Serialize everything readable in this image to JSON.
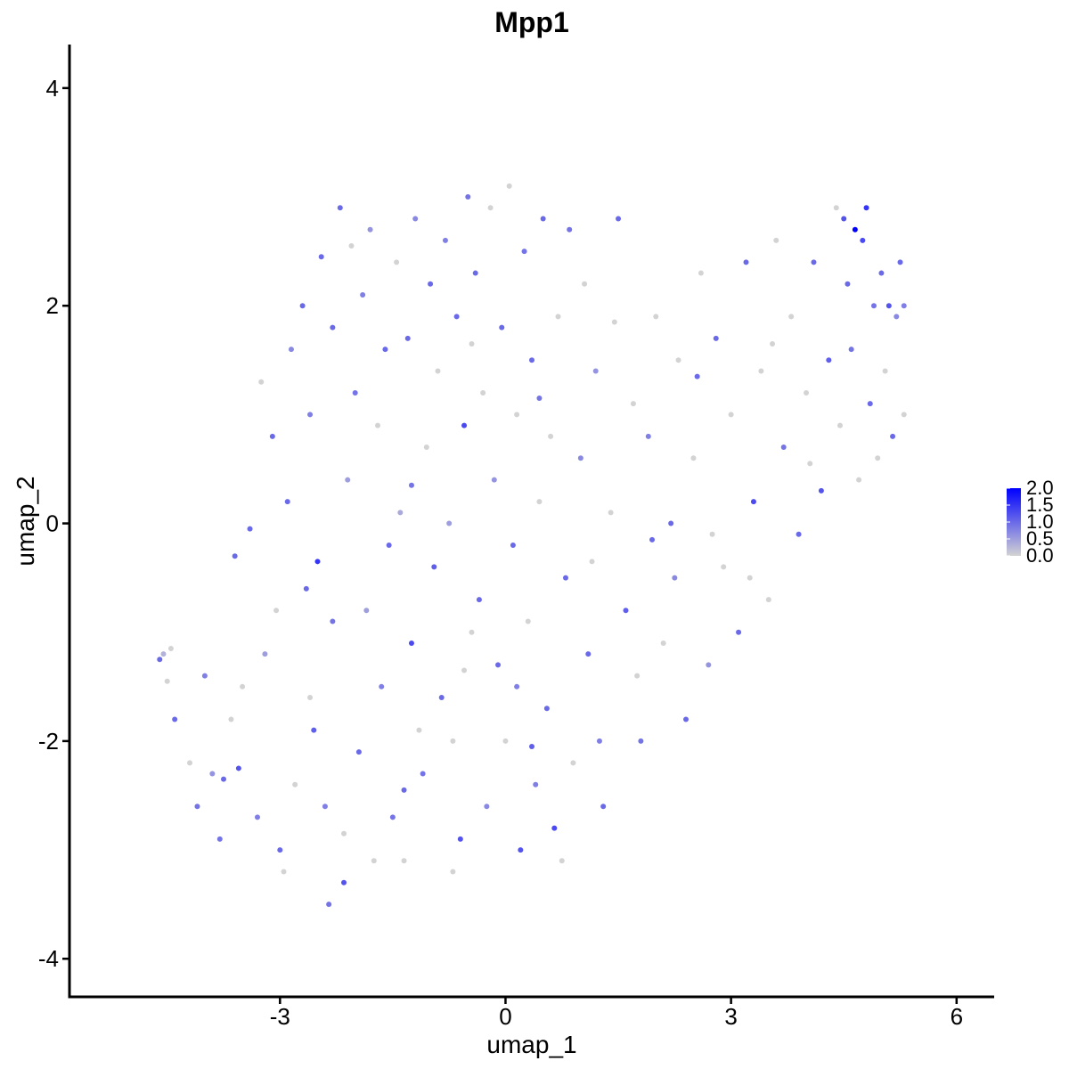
{
  "chart_data": {
    "type": "scatter",
    "title": "Mpp1",
    "xlabel": "umap_1",
    "ylabel": "umap_2",
    "xlim": [
      -5.8,
      6.5
    ],
    "ylim": [
      -4.35,
      4.4
    ],
    "xticks": [
      -3,
      0,
      3,
      6
    ],
    "yticks": [
      -4,
      -2,
      0,
      2,
      4
    ],
    "xtick_labels": [
      "-3",
      "0",
      "3",
      "6"
    ],
    "ytick_labels": [
      "-4",
      "-2",
      "0",
      "2",
      "4"
    ],
    "grid": false,
    "legend": {
      "placement": "right",
      "type": "colorbar",
      "labels": [
        "2.0",
        "1.5",
        "1.0",
        "0.5",
        "0.0"
      ],
      "values": [
        2.0,
        1.5,
        1.0,
        0.5,
        0.0
      ],
      "low_color": "#d3d3d3",
      "high_color": "#0000ff"
    },
    "colors": {
      "low": "#d3d3d3",
      "high": "#0000ff"
    },
    "color_range": [
      0,
      2.0
    ],
    "points": [
      {
        "x": -4.6,
        "y": -1.25,
        "v": 1.0
      },
      {
        "x": -4.55,
        "y": -1.2,
        "v": 0.3
      },
      {
        "x": -4.5,
        "y": -1.45,
        "v": 0.0
      },
      {
        "x": -4.45,
        "y": -1.15,
        "v": 0.0
      },
      {
        "x": -4.4,
        "y": -1.8,
        "v": 1.0
      },
      {
        "x": -4.2,
        "y": -2.2,
        "v": 0.0
      },
      {
        "x": -4.1,
        "y": -2.6,
        "v": 0.9
      },
      {
        "x": -4.0,
        "y": -1.4,
        "v": 0.8
      },
      {
        "x": -3.9,
        "y": -2.3,
        "v": 0.6
      },
      {
        "x": -3.8,
        "y": -2.9,
        "v": 0.9
      },
      {
        "x": -3.6,
        "y": -0.3,
        "v": 1.0
      },
      {
        "x": -3.55,
        "y": -2.25,
        "v": 1.2
      },
      {
        "x": -3.5,
        "y": -1.5,
        "v": 0.0
      },
      {
        "x": -3.4,
        "y": -0.05,
        "v": 1.0
      },
      {
        "x": -3.3,
        "y": -2.7,
        "v": 0.8
      },
      {
        "x": -3.2,
        "y": -1.2,
        "v": 0.5
      },
      {
        "x": -3.1,
        "y": 0.8,
        "v": 1.0
      },
      {
        "x": -3.0,
        "y": -3.0,
        "v": 1.0
      },
      {
        "x": -2.9,
        "y": 0.2,
        "v": 1.0
      },
      {
        "x": -2.85,
        "y": 1.6,
        "v": 0.7
      },
      {
        "x": -2.8,
        "y": -2.4,
        "v": 0.0
      },
      {
        "x": -2.7,
        "y": 2.0,
        "v": 1.0
      },
      {
        "x": -2.65,
        "y": -0.6,
        "v": 1.0
      },
      {
        "x": -2.6,
        "y": 1.0,
        "v": 0.8
      },
      {
        "x": -2.55,
        "y": -1.9,
        "v": 1.1
      },
      {
        "x": -2.5,
        "y": -0.35,
        "v": 1.5
      },
      {
        "x": -2.45,
        "y": 2.45,
        "v": 1.0
      },
      {
        "x": -2.4,
        "y": -2.6,
        "v": 0.8
      },
      {
        "x": -2.35,
        "y": -3.5,
        "v": 0.9
      },
      {
        "x": -2.3,
        "y": 1.8,
        "v": 1.0
      },
      {
        "x": -2.2,
        "y": 2.9,
        "v": 1.0
      },
      {
        "x": -2.15,
        "y": -3.3,
        "v": 1.2
      },
      {
        "x": -2.1,
        "y": 0.4,
        "v": 0.5
      },
      {
        "x": -2.0,
        "y": 1.2,
        "v": 0.9
      },
      {
        "x": -1.95,
        "y": -2.1,
        "v": 1.0
      },
      {
        "x": -1.9,
        "y": 2.1,
        "v": 0.8
      },
      {
        "x": -1.85,
        "y": -0.8,
        "v": 0.5
      },
      {
        "x": -1.8,
        "y": 2.7,
        "v": 0.6
      },
      {
        "x": -1.7,
        "y": 0.9,
        "v": 0.0
      },
      {
        "x": -1.65,
        "y": -1.5,
        "v": 0.8
      },
      {
        "x": -1.6,
        "y": 1.6,
        "v": 1.0
      },
      {
        "x": -1.5,
        "y": -2.7,
        "v": 0.9
      },
      {
        "x": -1.45,
        "y": 2.4,
        "v": 0.0
      },
      {
        "x": -1.4,
        "y": 0.1,
        "v": 0.4
      },
      {
        "x": -1.35,
        "y": -3.1,
        "v": 0.0
      },
      {
        "x": -1.3,
        "y": 1.7,
        "v": 1.0
      },
      {
        "x": -1.25,
        "y": -1.1,
        "v": 1.3
      },
      {
        "x": -1.2,
        "y": 2.8,
        "v": 0.7
      },
      {
        "x": -1.1,
        "y": -2.3,
        "v": 0.9
      },
      {
        "x": -1.05,
        "y": 0.7,
        "v": 0.0
      },
      {
        "x": -1.0,
        "y": 2.2,
        "v": 1.0
      },
      {
        "x": -0.95,
        "y": -0.4,
        "v": 1.1
      },
      {
        "x": -0.9,
        "y": 1.4,
        "v": 0.0
      },
      {
        "x": -0.85,
        "y": -1.6,
        "v": 1.0
      },
      {
        "x": -0.8,
        "y": 2.6,
        "v": 0.8
      },
      {
        "x": -0.75,
        "y": 0.0,
        "v": 0.5
      },
      {
        "x": -0.7,
        "y": -2.0,
        "v": 0.0
      },
      {
        "x": -0.65,
        "y": 1.9,
        "v": 1.0
      },
      {
        "x": -0.6,
        "y": -2.9,
        "v": 1.2
      },
      {
        "x": -0.55,
        "y": 0.9,
        "v": 1.3
      },
      {
        "x": -0.5,
        "y": 3.0,
        "v": 0.9
      },
      {
        "x": -0.45,
        "y": -1.0,
        "v": 0.0
      },
      {
        "x": -0.4,
        "y": 2.3,
        "v": 1.0
      },
      {
        "x": -0.35,
        "y": -0.7,
        "v": 1.0
      },
      {
        "x": -0.3,
        "y": 1.2,
        "v": 0.0
      },
      {
        "x": -0.25,
        "y": -2.6,
        "v": 0.7
      },
      {
        "x": -0.2,
        "y": 2.9,
        "v": 0.0
      },
      {
        "x": -0.15,
        "y": 0.4,
        "v": 0.6
      },
      {
        "x": -0.1,
        "y": -1.3,
        "v": 1.0
      },
      {
        "x": -0.05,
        "y": 1.8,
        "v": 1.0
      },
      {
        "x": 0.0,
        "y": -2.0,
        "v": 0.0
      },
      {
        "x": 0.05,
        "y": 3.1,
        "v": 0.0
      },
      {
        "x": 0.1,
        "y": -0.2,
        "v": 1.0
      },
      {
        "x": 0.15,
        "y": 1.0,
        "v": 0.0
      },
      {
        "x": 0.2,
        "y": -3.0,
        "v": 1.2
      },
      {
        "x": 0.25,
        "y": 2.5,
        "v": 0.9
      },
      {
        "x": 0.3,
        "y": -0.9,
        "v": 0.0
      },
      {
        "x": 0.35,
        "y": 1.5,
        "v": 1.0
      },
      {
        "x": 0.4,
        "y": -2.4,
        "v": 0.8
      },
      {
        "x": 0.45,
        "y": 0.2,
        "v": 0.0
      },
      {
        "x": 0.5,
        "y": 2.8,
        "v": 1.0
      },
      {
        "x": 0.55,
        "y": -1.7,
        "v": 1.0
      },
      {
        "x": 0.6,
        "y": 0.8,
        "v": 0.0
      },
      {
        "x": 0.65,
        "y": -2.8,
        "v": 1.3
      },
      {
        "x": 0.7,
        "y": 1.9,
        "v": 0.0
      },
      {
        "x": 0.8,
        "y": -0.5,
        "v": 1.0
      },
      {
        "x": 0.85,
        "y": 2.7,
        "v": 0.9
      },
      {
        "x": 0.9,
        "y": -2.2,
        "v": 0.0
      },
      {
        "x": 1.0,
        "y": 0.6,
        "v": 0.7
      },
      {
        "x": 1.05,
        "y": 2.2,
        "v": 0.0
      },
      {
        "x": 1.1,
        "y": -1.2,
        "v": 1.0
      },
      {
        "x": 1.2,
        "y": 1.4,
        "v": 0.6
      },
      {
        "x": 1.3,
        "y": -2.6,
        "v": 1.0
      },
      {
        "x": 1.4,
        "y": 0.1,
        "v": 0.0
      },
      {
        "x": 1.5,
        "y": 2.8,
        "v": 1.0
      },
      {
        "x": 1.6,
        "y": -0.8,
        "v": 1.1
      },
      {
        "x": 1.7,
        "y": 1.1,
        "v": 0.0
      },
      {
        "x": 1.8,
        "y": -2.0,
        "v": 0.9
      },
      {
        "x": 1.9,
        "y": 0.8,
        "v": 0.8
      },
      {
        "x": 2.0,
        "y": 1.9,
        "v": 0.0
      },
      {
        "x": 2.1,
        "y": -1.1,
        "v": 0.0
      },
      {
        "x": 2.2,
        "y": 0.0,
        "v": 1.0
      },
      {
        "x": 2.3,
        "y": 1.5,
        "v": 0.0
      },
      {
        "x": 2.4,
        "y": -1.8,
        "v": 1.0
      },
      {
        "x": 2.5,
        "y": 0.6,
        "v": 0.0
      },
      {
        "x": 2.6,
        "y": 2.3,
        "v": 0.0
      },
      {
        "x": 2.7,
        "y": -1.3,
        "v": 0.6
      },
      {
        "x": 2.8,
        "y": 1.7,
        "v": 1.0
      },
      {
        "x": 2.9,
        "y": -0.4,
        "v": 0.0
      },
      {
        "x": 3.0,
        "y": 1.0,
        "v": 0.0
      },
      {
        "x": 3.1,
        "y": -1.0,
        "v": 1.0
      },
      {
        "x": 3.2,
        "y": 2.4,
        "v": 1.0
      },
      {
        "x": 3.3,
        "y": 0.2,
        "v": 1.3
      },
      {
        "x": 3.4,
        "y": 1.4,
        "v": 0.0
      },
      {
        "x": 3.5,
        "y": -0.7,
        "v": 0.0
      },
      {
        "x": 3.6,
        "y": 2.6,
        "v": 0.0
      },
      {
        "x": 3.7,
        "y": 0.7,
        "v": 0.9
      },
      {
        "x": 3.8,
        "y": 1.9,
        "v": 0.0
      },
      {
        "x": 3.9,
        "y": -0.1,
        "v": 1.0
      },
      {
        "x": 4.0,
        "y": 1.2,
        "v": 0.0
      },
      {
        "x": 4.1,
        "y": 2.4,
        "v": 1.0
      },
      {
        "x": 4.2,
        "y": 0.3,
        "v": 1.2
      },
      {
        "x": 4.3,
        "y": 1.5,
        "v": 1.1
      },
      {
        "x": 4.4,
        "y": 2.9,
        "v": 0.0
      },
      {
        "x": 4.45,
        "y": 0.9,
        "v": 0.0
      },
      {
        "x": 4.5,
        "y": 2.8,
        "v": 1.2
      },
      {
        "x": 4.55,
        "y": 2.2,
        "v": 1.0
      },
      {
        "x": 4.6,
        "y": 1.6,
        "v": 0.9
      },
      {
        "x": 4.65,
        "y": 2.7,
        "v": 2.0
      },
      {
        "x": 4.7,
        "y": 0.4,
        "v": 0.0
      },
      {
        "x": 4.75,
        "y": 2.6,
        "v": 1.3
      },
      {
        "x": 4.8,
        "y": 2.9,
        "v": 1.5
      },
      {
        "x": 4.85,
        "y": 1.1,
        "v": 1.0
      },
      {
        "x": 4.9,
        "y": 2.0,
        "v": 0.9
      },
      {
        "x": 4.95,
        "y": 0.6,
        "v": 0.0
      },
      {
        "x": 5.0,
        "y": 2.3,
        "v": 1.0
      },
      {
        "x": 5.05,
        "y": 1.4,
        "v": 0.0
      },
      {
        "x": 5.1,
        "y": 2.0,
        "v": 1.2
      },
      {
        "x": 5.15,
        "y": 0.8,
        "v": 1.0
      },
      {
        "x": 5.2,
        "y": 1.9,
        "v": 0.7
      },
      {
        "x": 5.25,
        "y": 2.4,
        "v": 1.0
      },
      {
        "x": 5.3,
        "y": 2.0,
        "v": 0.8
      },
      {
        "x": 5.3,
        "y": 1.0,
        "v": 0.0
      },
      {
        "x": -2.6,
        "y": -1.6,
        "v": 0.0
      },
      {
        "x": -2.3,
        "y": -0.9,
        "v": 0.9
      },
      {
        "x": -1.75,
        "y": -3.1,
        "v": 0.0
      },
      {
        "x": -1.55,
        "y": -0.2,
        "v": 1.0
      },
      {
        "x": -1.15,
        "y": -1.9,
        "v": 0.0
      },
      {
        "x": -0.7,
        "y": -3.2,
        "v": 0.0
      },
      {
        "x": 0.15,
        "y": -1.5,
        "v": 0.8
      },
      {
        "x": 0.75,
        "y": -3.1,
        "v": 0.0
      },
      {
        "x": 1.25,
        "y": -2.0,
        "v": 0.8
      },
      {
        "x": 1.75,
        "y": -1.4,
        "v": 0.0
      },
      {
        "x": 2.25,
        "y": -0.5,
        "v": 0.7
      },
      {
        "x": 2.75,
        "y": -0.1,
        "v": 0.0
      },
      {
        "x": 3.25,
        "y": -0.5,
        "v": 0.0
      },
      {
        "x": -3.05,
        "y": -0.8,
        "v": 0.0
      },
      {
        "x": -3.65,
        "y": -1.8,
        "v": 0.0
      },
      {
        "x": -3.25,
        "y": 1.3,
        "v": 0.0
      },
      {
        "x": -2.05,
        "y": 2.55,
        "v": 0.0
      },
      {
        "x": -1.25,
        "y": 0.35,
        "v": 0.9
      },
      {
        "x": -0.45,
        "y": 1.65,
        "v": 0.0
      },
      {
        "x": 0.45,
        "y": 1.15,
        "v": 0.9
      },
      {
        "x": 1.45,
        "y": 1.85,
        "v": 0.0
      },
      {
        "x": 2.55,
        "y": 1.35,
        "v": 1.0
      },
      {
        "x": 3.55,
        "y": 1.65,
        "v": 0.0
      },
      {
        "x": 4.05,
        "y": 0.55,
        "v": 0.0
      },
      {
        "x": -3.75,
        "y": -2.35,
        "v": 1.0
      },
      {
        "x": -2.95,
        "y": -3.2,
        "v": 0.0
      },
      {
        "x": -2.15,
        "y": -2.85,
        "v": 0.0
      },
      {
        "x": -1.35,
        "y": -2.45,
        "v": 1.0
      },
      {
        "x": -0.55,
        "y": -1.35,
        "v": 0.0
      },
      {
        "x": 0.35,
        "y": -2.05,
        "v": 1.1
      },
      {
        "x": 1.15,
        "y": -0.35,
        "v": 0.0
      },
      {
        "x": 1.95,
        "y": -0.15,
        "v": 1.0
      }
    ]
  }
}
